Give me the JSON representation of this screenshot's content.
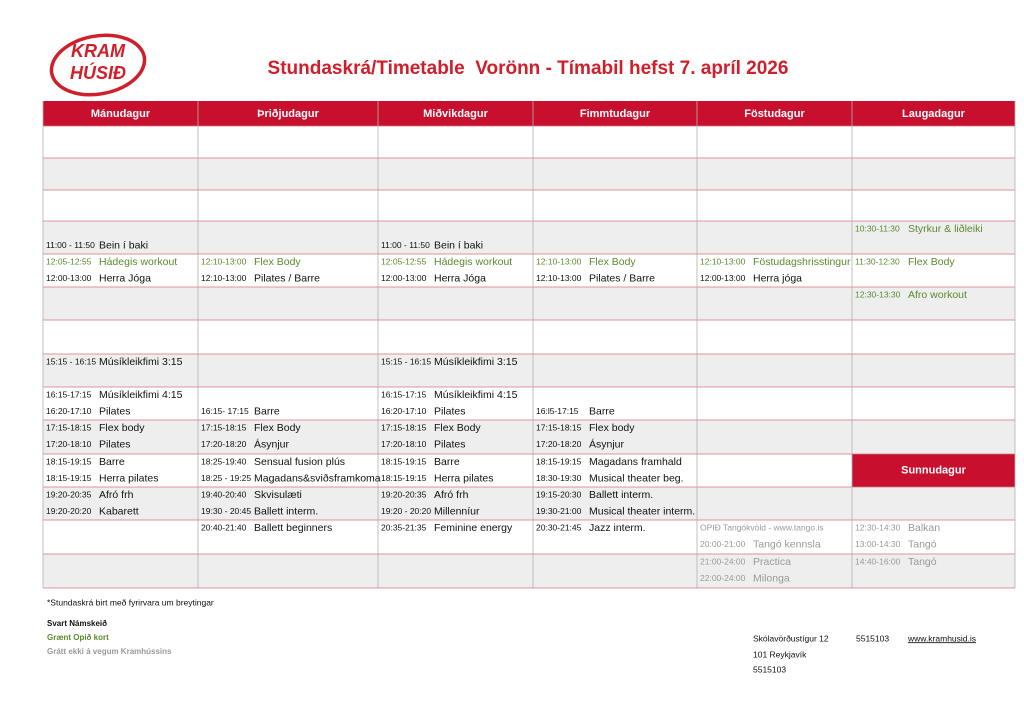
{
  "logo": {
    "line1": "KRAM",
    "line2": "HÚSIÐ"
  },
  "title": "Stundaskrá/Timetable  Vorönn - Tímabil hefst 7. apríl 2026",
  "colors": {
    "black": "#111111",
    "green": "#5b8a2e",
    "gray": "#9a9a9a"
  },
  "days": [
    "Mánudagur",
    "Þriðjudagur",
    "Miðvikdagur",
    "Fimmtudagur",
    "Föstudagur",
    "Laugadagur"
  ],
  "sunday_header": "Sunnudagur",
  "rows": [
    [
      [
        null,
        null
      ],
      [
        null,
        null
      ],
      [
        null,
        null
      ],
      [
        null,
        null
      ],
      [
        null,
        null
      ],
      [
        null,
        null
      ]
    ],
    [
      [
        null,
        null
      ],
      [
        null,
        null
      ],
      [
        null,
        null
      ],
      [
        null,
        null
      ],
      [
        null,
        null
      ],
      [
        null,
        null
      ]
    ],
    [
      [
        null,
        null
      ],
      [
        null,
        null
      ],
      [
        null,
        null
      ],
      [
        null,
        null
      ],
      [
        null,
        null
      ],
      [
        null,
        null
      ]
    ],
    [
      [
        null,
        {
          "time": "11:00 - 11:50",
          "name": "Bein í baki",
          "color": "black"
        }
      ],
      [
        null,
        null
      ],
      [
        null,
        {
          "time": "11:00 - 11:50",
          "name": "Bein í baki",
          "color": "black"
        }
      ],
      [
        null,
        null
      ],
      [
        null,
        null
      ],
      [
        {
          "time": "10:30-11:30",
          "name": "Styrkur & liðleiki",
          "color": "green"
        },
        null
      ]
    ],
    [
      [
        {
          "time": "12:05-12:55",
          "name": "Hádegis workout",
          "color": "green"
        },
        {
          "time": "12:00-13:00",
          "name": "Herra Jóga",
          "color": "black"
        }
      ],
      [
        {
          "time": "12:10-13:00",
          "name": "Flex Body",
          "color": "green"
        },
        {
          "time": "12:10-13:00",
          "name": "Pilates / Barre",
          "color": "black"
        }
      ],
      [
        {
          "time": "12:05-12:55",
          "name": "Hádegis workout",
          "color": "green"
        },
        {
          "time": "12:00-13:00",
          "name": "Herra Jóga",
          "color": "black"
        }
      ],
      [
        {
          "time": "12:10-13:00",
          "name": "Flex Body",
          "color": "green"
        },
        {
          "time": "12:10-13:00",
          "name": "Pilates / Barre",
          "color": "black"
        }
      ],
      [
        {
          "time": "12:10-13:00",
          "name": "Föstudagshrisstingur",
          "color": "green"
        },
        {
          "time": "12:00-13:00",
          "name": "Herra jóga",
          "color": "black"
        }
      ],
      [
        {
          "time": "11:30-12:30",
          "name": "Flex Body",
          "color": "green"
        },
        null
      ]
    ],
    [
      [
        null,
        null
      ],
      [
        null,
        null
      ],
      [
        null,
        null
      ],
      [
        null,
        null
      ],
      [
        null,
        null
      ],
      [
        {
          "time": "12:30-13:30",
          "name": "Afro workout",
          "color": "green"
        },
        null
      ]
    ],
    [
      [
        null,
        null
      ],
      [
        null,
        null
      ],
      [
        null,
        null
      ],
      [
        null,
        null
      ],
      [
        null,
        null
      ],
      [
        null,
        null
      ]
    ],
    [
      [
        {
          "time": "15:15 - 16:15",
          "name": "Músíkleikfimi 3:15",
          "color": "black"
        },
        null
      ],
      [
        null,
        null
      ],
      [
        {
          "time": "15:15 - 16:15",
          "name": "Músíkleikfimi 3:15",
          "color": "black"
        },
        null
      ],
      [
        null,
        null
      ],
      [
        null,
        null
      ],
      [
        null,
        null
      ]
    ],
    [
      [
        {
          "time": "16:15-17:15",
          "name": "Músíkleikfimi 4:15",
          "color": "black"
        },
        {
          "time": "16:20-17:10",
          "name": "Pilates",
          "color": "black"
        }
      ],
      [
        null,
        {
          "time": "16:15- 17:15",
          "name": "Barre",
          "color": "black"
        }
      ],
      [
        {
          "time": "16:15-17:15",
          "name": "Músíkleikfimi 4:15",
          "color": "black"
        },
        {
          "time": "16:20-17:10",
          "name": "Pilates",
          "color": "black"
        }
      ],
      [
        null,
        {
          "time": "16:l5-17:15",
          "name": "Barre",
          "color": "black"
        }
      ],
      [
        null,
        null
      ],
      [
        null,
        null
      ]
    ],
    [
      [
        {
          "time": "17:15-18:15",
          "name": "Flex body",
          "color": "black"
        },
        {
          "time": "17:20-18:10",
          "name": "Pilates",
          "color": "black"
        }
      ],
      [
        {
          "time": "17:15-18:15",
          "name": "Flex Body",
          "color": "black"
        },
        {
          "time": "17:20-18:20",
          "name": "Ásynjur",
          "color": "black"
        }
      ],
      [
        {
          "time": "17:15-18:15",
          "name": "Flex Body",
          "color": "black"
        },
        {
          "time": "17:20-18:10",
          "name": "Pilates",
          "color": "black"
        }
      ],
      [
        {
          "time": "17:15-18:15",
          "name": "Flex body",
          "color": "black"
        },
        {
          "time": "17:20-18:20",
          "name": "Ásynjur",
          "color": "black"
        }
      ],
      [
        null,
        null
      ],
      [
        null,
        null
      ]
    ],
    [
      [
        {
          "time": "18:15-19:15",
          "name": "Barre",
          "color": "black"
        },
        {
          "time": "18:15-19:15",
          "name": "Herra pilates",
          "color": "black"
        }
      ],
      [
        {
          "time": "18:25-19:40",
          "name": "Sensual fusion plús",
          "color": "black"
        },
        {
          "time": "18:25 - 19:25",
          "name": "Magadans&sviðsframkoma",
          "color": "black"
        }
      ],
      [
        {
          "time": "18:15-19:15",
          "name": "Barre",
          "color": "black"
        },
        {
          "time": "18:15-19:15",
          "name": "Herra pilates",
          "color": "black"
        }
      ],
      [
        {
          "time": "18:15-19:15",
          "name": "Magadans framhald",
          "color": "black"
        },
        {
          "time": "18:30-19:30",
          "name": "Musical theater beg.",
          "color": "black"
        }
      ],
      [
        null,
        null
      ],
      [
        null,
        null
      ]
    ],
    [
      [
        {
          "time": "19:20-20:35",
          "name": "Afró frh",
          "color": "black"
        },
        {
          "time": "19:20-20:20",
          "name": "Kabarett",
          "color": "black"
        }
      ],
      [
        {
          "time": "19:40-20:40",
          "name": "Skvisulæti",
          "color": "black"
        },
        {
          "time": "19:30 - 20:45",
          "name": "Ballett interm.",
          "color": "black"
        }
      ],
      [
        {
          "time": "19:20-20:35",
          "name": "Afró frh",
          "color": "black"
        },
        {
          "time": "19:20 - 20:20",
          "name": "Millenníur",
          "color": "black"
        }
      ],
      [
        {
          "time": "19:15-20:30",
          "name": "Ballett interm.",
          "color": "black"
        },
        {
          "time": "19:30-21:00",
          "name": "Musical theater interm.",
          "color": "black"
        }
      ],
      [
        null,
        null
      ],
      [
        null,
        null
      ]
    ],
    [
      [
        null,
        null
      ],
      [
        {
          "time": "20:40-21:40",
          "name": "Ballett beginners",
          "color": "black"
        },
        null
      ],
      [
        {
          "time": "20:35-21:35",
          "name": "Feminine energy",
          "color": "black"
        },
        null
      ],
      [
        {
          "time": "20:30-21:45",
          "name": "Jazz interm.",
          "color": "black"
        },
        null
      ],
      [
        {
          "time": "OPIÐ Tangókvöld - www.tango.is",
          "color": "gray"
        },
        {
          "time": "20:00-21:00",
          "name": "Tangó kennsla",
          "color": "gray"
        }
      ],
      [
        {
          "time": "12:30-14:30",
          "name": "Balkan",
          "color": "gray"
        },
        {
          "time": "13:00-14:30",
          "name": "Tangó",
          "color": "gray"
        }
      ]
    ],
    [
      [
        null,
        null
      ],
      [
        null,
        null
      ],
      [
        null,
        null
      ],
      [
        null,
        null
      ],
      [
        {
          "time": "21:00-24:00",
          "name": "Practica",
          "color": "gray"
        },
        {
          "time": "22:00-24:00",
          "name": "Milonga",
          "color": "gray"
        }
      ],
      [
        {
          "time": "14:40-16:00",
          "name": "Tangó",
          "color": "gray"
        },
        null
      ]
    ]
  ],
  "footer": {
    "note": "*Stundaskrá birt með fyrirvara um breytingar",
    "legend": [
      {
        "text": "Svart Námskeið",
        "color": "black"
      },
      {
        "text": "Grænt Opið kort",
        "color": "green"
      },
      {
        "text": "Grátt ekki á vegum Kramhússins",
        "color": "gray"
      }
    ],
    "address": [
      "Skólavörðustígur 12",
      "101 Reykjavík",
      "5515103"
    ],
    "phone": "5515103",
    "web": "www.kramhusid.is"
  }
}
